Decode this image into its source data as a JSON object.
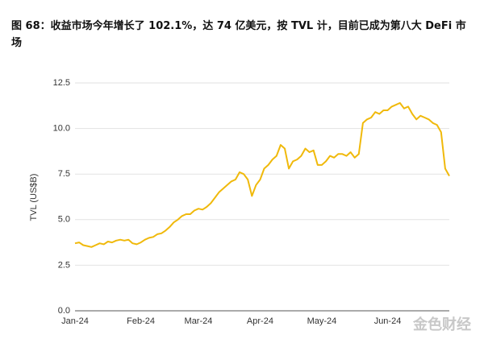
{
  "chart_data": {
    "type": "line",
    "title": "图 68：收益市场今年增长了 102.1%，达 74 亿美元，按 TVL 计，目前已成为第八大 DeFi 市场",
    "y_label": "TVL (US$B)",
    "watermark": "金色财经",
    "categories": [
      "Jan-24",
      null,
      null,
      null,
      null,
      null,
      null,
      null,
      null,
      null,
      null,
      null,
      null,
      null,
      null,
      null,
      "Feb-24",
      null,
      null,
      null,
      null,
      null,
      null,
      null,
      null,
      null,
      null,
      null,
      null,
      null,
      "Mar-24",
      null,
      null,
      null,
      null,
      null,
      null,
      null,
      null,
      null,
      null,
      null,
      null,
      null,
      null,
      "Apr-24",
      null,
      null,
      null,
      null,
      null,
      null,
      null,
      null,
      null,
      null,
      null,
      null,
      null,
      null,
      "May-24",
      null,
      null,
      null,
      null,
      null,
      null,
      null,
      null,
      null,
      null,
      null,
      null,
      null,
      null,
      null,
      "Jun-24",
      null,
      null,
      null,
      null,
      null,
      null,
      null,
      null,
      null,
      null,
      null,
      null,
      null,
      null,
      null
    ],
    "series": [
      {
        "name": "TVL",
        "color": "#f0b90b",
        "values": [
          3.7,
          3.75,
          3.6,
          3.55,
          3.5,
          3.6,
          3.7,
          3.65,
          3.8,
          3.75,
          3.85,
          3.9,
          3.85,
          3.9,
          3.7,
          3.65,
          3.75,
          3.9,
          4.0,
          4.05,
          4.2,
          4.25,
          4.4,
          4.6,
          4.85,
          5.0,
          5.2,
          5.3,
          5.3,
          5.5,
          5.6,
          5.55,
          5.7,
          5.9,
          6.2,
          6.5,
          6.7,
          6.9,
          7.1,
          7.2,
          7.6,
          7.5,
          7.2,
          6.3,
          6.9,
          7.2,
          7.8,
          8.0,
          8.3,
          8.5,
          9.1,
          8.9,
          7.8,
          8.2,
          8.3,
          8.5,
          8.9,
          8.7,
          8.8,
          8.0,
          8.0,
          8.2,
          8.5,
          8.4,
          8.6,
          8.6,
          8.5,
          8.7,
          8.4,
          8.6,
          10.3,
          10.5,
          10.6,
          10.9,
          10.8,
          11.0,
          11.0,
          11.2,
          11.3,
          11.4,
          11.1,
          11.2,
          10.8,
          10.5,
          10.7,
          10.6,
          10.5,
          10.3,
          10.2,
          9.8,
          7.8,
          7.4
        ]
      }
    ],
    "ylim": [
      0,
      12.5
    ],
    "yticks": [
      {
        "value": 0,
        "label": "0.0"
      },
      {
        "value": 2.5,
        "label": "2.5"
      },
      {
        "value": 5,
        "label": "5.0"
      },
      {
        "value": 7.5,
        "label": "7.5"
      },
      {
        "value": 10,
        "label": "10.0"
      },
      {
        "value": 12.5,
        "label": "12.5"
      }
    ],
    "grid": true
  }
}
